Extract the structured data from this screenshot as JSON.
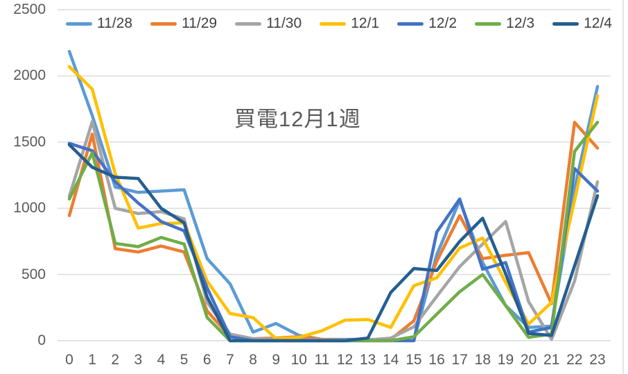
{
  "title": "買電12月1週",
  "colors": {
    "grid": "#D9D9D9",
    "axis_text": "#595959",
    "legend_text": "#404040",
    "background": "#FFFFFF"
  },
  "chart_data": {
    "type": "line",
    "title": "買電12月1週",
    "xlabel": "",
    "ylabel": "",
    "ylim": [
      0,
      2500
    ],
    "yticks": [
      0,
      500,
      1000,
      1500,
      2000,
      2500
    ],
    "grid": true,
    "legend_position": "top",
    "x": [
      0,
      1,
      2,
      3,
      4,
      5,
      6,
      7,
      8,
      9,
      10,
      11,
      12,
      13,
      14,
      15,
      16,
      17,
      18,
      19,
      20,
      21,
      22,
      23
    ],
    "series": [
      {
        "name": "11/28",
        "color": "#5B9BD5",
        "values": [
          2185,
          1700,
          1160,
          1120,
          1130,
          1140,
          620,
          430,
          65,
          130,
          40,
          10,
          10,
          10,
          5,
          0,
          650,
          1060,
          590,
          265,
          100,
          110,
          1150,
          1920
        ]
      },
      {
        "name": "11/29",
        "color": "#ED7D31",
        "values": [
          945,
          1560,
          695,
          670,
          715,
          670,
          225,
          30,
          15,
          20,
          30,
          10,
          5,
          5,
          10,
          150,
          600,
          945,
          620,
          645,
          665,
          280,
          1650,
          1455
        ]
      },
      {
        "name": "11/30",
        "color": "#A5A5A5",
        "values": [
          1090,
          1655,
          1000,
          960,
          975,
          920,
          290,
          50,
          15,
          10,
          5,
          5,
          5,
          5,
          20,
          105,
          335,
          560,
          730,
          900,
          295,
          10,
          450,
          1200
        ]
      },
      {
        "name": "12/1",
        "color": "#FFC000",
        "values": [
          2070,
          1900,
          1260,
          850,
          885,
          890,
          450,
          205,
          175,
          15,
          25,
          75,
          155,
          160,
          100,
          415,
          475,
          700,
          775,
          440,
          125,
          290,
          1060,
          1850
        ]
      },
      {
        "name": "12/2",
        "color": "#4472C4",
        "values": [
          1490,
          1435,
          1200,
          1040,
          900,
          830,
          400,
          30,
          0,
          0,
          0,
          0,
          0,
          0,
          0,
          0,
          820,
          1070,
          540,
          590,
          65,
          100,
          1300,
          1130
        ]
      },
      {
        "name": "12/3",
        "color": "#70AD47",
        "values": [
          1070,
          1420,
          735,
          710,
          780,
          730,
          175,
          0,
          0,
          0,
          0,
          0,
          0,
          0,
          0,
          30,
          200,
          370,
          500,
          265,
          25,
          50,
          1430,
          1650
        ]
      },
      {
        "name": "12/4",
        "color": "#255E91",
        "values": [
          1480,
          1310,
          1235,
          1225,
          1000,
          890,
          330,
          0,
          0,
          0,
          0,
          0,
          0,
          20,
          365,
          545,
          530,
          750,
          925,
          505,
          55,
          40,
          565,
          1095
        ]
      }
    ]
  }
}
